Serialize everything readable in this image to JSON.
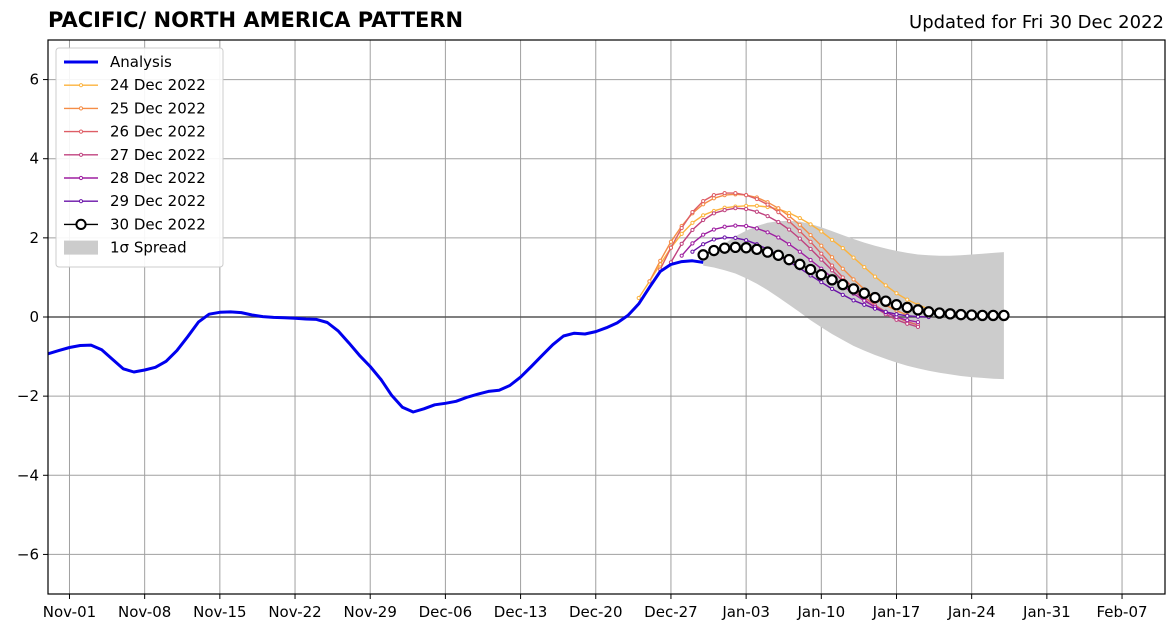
{
  "chart_data": {
    "type": "line",
    "title": "PACIFIC/ NORTH AMERICA PATTERN",
    "subtitle": "Updated for Fri 30 Dec 2022",
    "xlabel": "",
    "ylabel": "",
    "x_axis": {
      "type": "date",
      "range": [
        "2022-10-30",
        "2023-02-11"
      ],
      "ticks": [
        {
          "date": "2022-11-01",
          "label": "Nov-01"
        },
        {
          "date": "2022-11-08",
          "label": "Nov-08"
        },
        {
          "date": "2022-11-15",
          "label": "Nov-15"
        },
        {
          "date": "2022-11-22",
          "label": "Nov-22"
        },
        {
          "date": "2022-11-29",
          "label": "Nov-29"
        },
        {
          "date": "2022-12-06",
          "label": "Dec-06"
        },
        {
          "date": "2022-12-13",
          "label": "Dec-13"
        },
        {
          "date": "2022-12-20",
          "label": "Dec-20"
        },
        {
          "date": "2022-12-27",
          "label": "Dec-27"
        },
        {
          "date": "2023-01-03",
          "label": "Jan-03"
        },
        {
          "date": "2023-01-10",
          "label": "Jan-10"
        },
        {
          "date": "2023-01-17",
          "label": "Jan-17"
        },
        {
          "date": "2023-01-24",
          "label": "Jan-24"
        },
        {
          "date": "2023-01-31",
          "label": "Jan-31"
        },
        {
          "date": "2023-02-07",
          "label": "Feb-07"
        }
      ]
    },
    "y_axis": {
      "range": [
        -7,
        7
      ],
      "ticks": [
        {
          "value": -6,
          "label": "−6"
        },
        {
          "value": -4,
          "label": "−4"
        },
        {
          "value": -2,
          "label": "−2"
        },
        {
          "value": 0,
          "label": "0"
        },
        {
          "value": 2,
          "label": "2"
        },
        {
          "value": 4,
          "label": "4"
        },
        {
          "value": 6,
          "label": "6"
        }
      ]
    },
    "grid": true,
    "zero_line": true,
    "legend_position": "upper-left",
    "legend_entries": [
      {
        "label": "Analysis",
        "series": "analysis"
      },
      {
        "label": "24 Dec 2022",
        "series": "fc_24"
      },
      {
        "label": "25 Dec 2022",
        "series": "fc_25"
      },
      {
        "label": "26 Dec 2022",
        "series": "fc_26"
      },
      {
        "label": "27 Dec 2022",
        "series": "fc_27"
      },
      {
        "label": "28 Dec 2022",
        "series": "fc_28"
      },
      {
        "label": "29 Dec 2022",
        "series": "fc_29"
      },
      {
        "label": "30 Dec 2022",
        "series": "fc_30"
      },
      {
        "label": "1σ Spread",
        "series": "spread"
      }
    ],
    "analysis": {
      "name": "Analysis",
      "color": "#0000ee",
      "points": [
        [
          "2022-10-30",
          -0.93
        ],
        [
          "2022-10-31",
          -0.85
        ],
        [
          "2022-11-01",
          -0.77
        ],
        [
          "2022-11-02",
          -0.72
        ],
        [
          "2022-11-03",
          -0.71
        ],
        [
          "2022-11-04",
          -0.83
        ],
        [
          "2022-11-05",
          -1.07
        ],
        [
          "2022-11-06",
          -1.31
        ],
        [
          "2022-11-07",
          -1.39
        ],
        [
          "2022-11-08",
          -1.34
        ],
        [
          "2022-11-09",
          -1.27
        ],
        [
          "2022-11-10",
          -1.12
        ],
        [
          "2022-11-11",
          -0.85
        ],
        [
          "2022-11-12",
          -0.5
        ],
        [
          "2022-11-13",
          -0.13
        ],
        [
          "2022-11-14",
          0.07
        ],
        [
          "2022-11-15",
          0.12
        ],
        [
          "2022-11-16",
          0.13
        ],
        [
          "2022-11-17",
          0.11
        ],
        [
          "2022-11-18",
          0.05
        ],
        [
          "2022-11-19",
          0.01
        ],
        [
          "2022-11-20",
          -0.01
        ],
        [
          "2022-11-21",
          -0.02
        ],
        [
          "2022-11-22",
          -0.03
        ],
        [
          "2022-11-23",
          -0.05
        ],
        [
          "2022-11-24",
          -0.06
        ],
        [
          "2022-11-25",
          -0.14
        ],
        [
          "2022-11-26",
          -0.35
        ],
        [
          "2022-11-27",
          -0.65
        ],
        [
          "2022-11-28",
          -0.97
        ],
        [
          "2022-11-29",
          -1.25
        ],
        [
          "2022-11-30",
          -1.58
        ],
        [
          "2022-12-01",
          -1.98
        ],
        [
          "2022-12-02",
          -2.28
        ],
        [
          "2022-12-03",
          -2.4
        ],
        [
          "2022-12-04",
          -2.32
        ],
        [
          "2022-12-05",
          -2.22
        ],
        [
          "2022-12-06",
          -2.18
        ],
        [
          "2022-12-07",
          -2.13
        ],
        [
          "2022-12-08",
          -2.03
        ],
        [
          "2022-12-09",
          -1.95
        ],
        [
          "2022-12-10",
          -1.88
        ],
        [
          "2022-12-11",
          -1.85
        ],
        [
          "2022-12-12",
          -1.73
        ],
        [
          "2022-12-13",
          -1.52
        ],
        [
          "2022-12-14",
          -1.25
        ],
        [
          "2022-12-15",
          -0.97
        ],
        [
          "2022-12-16",
          -0.7
        ],
        [
          "2022-12-17",
          -0.48
        ],
        [
          "2022-12-18",
          -0.41
        ],
        [
          "2022-12-19",
          -0.43
        ],
        [
          "2022-12-20",
          -0.37
        ],
        [
          "2022-12-21",
          -0.27
        ],
        [
          "2022-12-22",
          -0.15
        ],
        [
          "2022-12-23",
          0.04
        ],
        [
          "2022-12-24",
          0.33
        ],
        [
          "2022-12-25",
          0.75
        ],
        [
          "2022-12-26",
          1.15
        ],
        [
          "2022-12-27",
          1.33
        ],
        [
          "2022-12-28",
          1.4
        ],
        [
          "2022-12-29",
          1.42
        ],
        [
          "2022-12-30",
          1.38
        ]
      ]
    },
    "forecasts": [
      {
        "key": "fc_24",
        "name": "24 Dec 2022",
        "color": "#fcb33d",
        "start": "2022-12-24",
        "values": [
          0.48,
          0.9,
          1.33,
          1.75,
          2.1,
          2.38,
          2.57,
          2.68,
          2.76,
          2.79,
          2.81,
          2.81,
          2.78,
          2.73,
          2.63,
          2.5,
          2.34,
          2.16,
          1.95,
          1.74,
          1.5,
          1.26,
          1.02,
          0.8,
          0.6,
          0.44,
          0.31,
          0.2,
          0.12
        ]
      },
      {
        "key": "fc_25",
        "name": "25 Dec 2022",
        "color": "#f58d46",
        "start": "2022-12-25",
        "values": [
          0.9,
          1.42,
          1.9,
          2.3,
          2.62,
          2.85,
          3.0,
          3.08,
          3.1,
          3.08,
          3.02,
          2.9,
          2.75,
          2.55,
          2.33,
          2.07,
          1.8,
          1.51,
          1.22,
          0.95,
          0.7,
          0.47,
          0.3,
          0.16,
          0.05
        ]
      },
      {
        "key": "fc_26",
        "name": "26 Dec 2022",
        "color": "#de5e66",
        "start": "2022-12-26",
        "values": [
          1.2,
          1.75,
          2.25,
          2.65,
          2.93,
          3.08,
          3.13,
          3.13,
          3.08,
          2.98,
          2.84,
          2.65,
          2.42,
          2.17,
          1.9,
          1.6,
          1.3,
          1.0,
          0.73,
          0.5,
          0.3,
          0.13,
          0.0,
          -0.12,
          -0.2
        ]
      },
      {
        "key": "fc_27",
        "name": "27 Dec 2022",
        "color": "#c0427f",
        "start": "2022-12-27",
        "values": [
          1.38,
          1.85,
          2.2,
          2.45,
          2.62,
          2.7,
          2.75,
          2.73,
          2.66,
          2.55,
          2.4,
          2.21,
          1.98,
          1.72,
          1.45,
          1.18,
          0.91,
          0.66,
          0.44,
          0.24,
          0.07,
          -0.07,
          -0.17,
          -0.25
        ]
      },
      {
        "key": "fc_28",
        "name": "28 Dec 2022",
        "color": "#9e1fa1",
        "start": "2022-12-28",
        "values": [
          1.55,
          1.86,
          2.08,
          2.21,
          2.28,
          2.31,
          2.3,
          2.24,
          2.14,
          2.01,
          1.84,
          1.65,
          1.44,
          1.22,
          1.0,
          0.79,
          0.59,
          0.41,
          0.26,
          0.12,
          0.0,
          -0.08,
          -0.13
        ]
      },
      {
        "key": "fc_29",
        "name": "29 Dec 2022",
        "color": "#6a13a8",
        "start": "2022-12-29",
        "values": [
          1.65,
          1.84,
          1.96,
          2.01,
          2.0,
          1.94,
          1.84,
          1.71,
          1.56,
          1.4,
          1.23,
          1.05,
          0.88,
          0.71,
          0.56,
          0.42,
          0.31,
          0.21,
          0.13,
          0.07,
          0.03,
          0.01,
          0.0
        ]
      },
      {
        "key": "fc_30",
        "name": "30 Dec 2022",
        "color": "#000000",
        "start": "2022-12-30",
        "values": [
          1.57,
          1.68,
          1.74,
          1.76,
          1.75,
          1.71,
          1.64,
          1.56,
          1.45,
          1.33,
          1.2,
          1.07,
          0.94,
          0.82,
          0.71,
          0.6,
          0.49,
          0.4,
          0.31,
          0.24,
          0.18,
          0.13,
          0.1,
          0.08,
          0.06,
          0.05,
          0.04,
          0.04,
          0.04
        ]
      }
    ],
    "spread": {
      "name": "1σ Spread",
      "color": "#cccccc",
      "start": "2022-12-30",
      "upper": [
        1.45,
        1.62,
        1.85,
        2.04,
        2.18,
        2.3,
        2.38,
        2.42,
        2.43,
        2.41,
        2.35,
        2.27,
        2.17,
        2.07,
        1.97,
        1.88,
        1.8,
        1.73,
        1.67,
        1.62,
        1.58,
        1.56,
        1.55,
        1.55,
        1.56,
        1.58,
        1.6,
        1.62,
        1.64
      ],
      "lower": [
        1.3,
        1.25,
        1.18,
        1.1,
        0.98,
        0.84,
        0.68,
        0.5,
        0.31,
        0.12,
        -0.08,
        -0.26,
        -0.43,
        -0.58,
        -0.73,
        -0.85,
        -0.96,
        -1.06,
        -1.15,
        -1.23,
        -1.3,
        -1.36,
        -1.41,
        -1.45,
        -1.49,
        -1.52,
        -1.54,
        -1.56,
        -1.57
      ]
    }
  }
}
